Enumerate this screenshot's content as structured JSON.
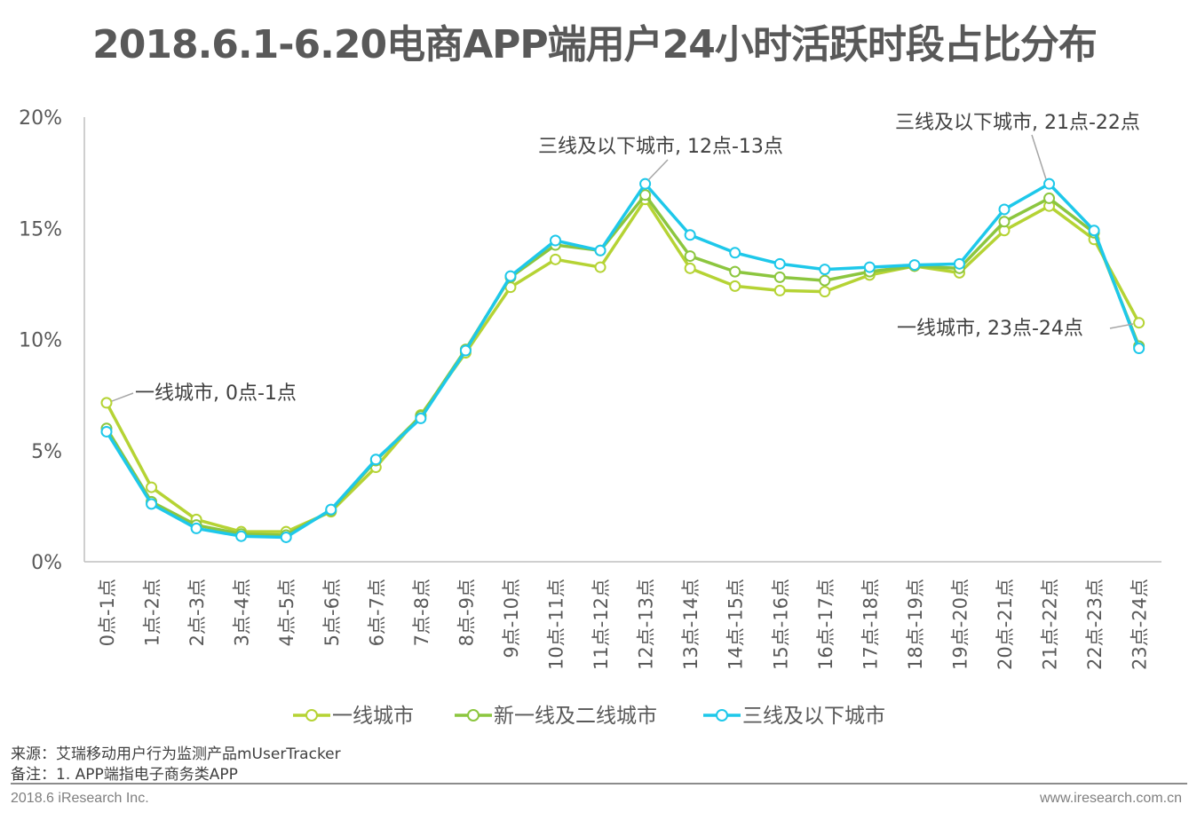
{
  "chart_data": {
    "type": "line",
    "title": "2018.6.1-6.20电商APP端用户24小时活跃时段占比分布",
    "xlabel": "",
    "ylabel": "",
    "ylim": [
      0,
      20
    ],
    "yticks": [
      "0%",
      "5%",
      "10%",
      "15%",
      "20%"
    ],
    "ytick_values": [
      0,
      5,
      10,
      15,
      20
    ],
    "grid": false,
    "legend_position": "bottom",
    "categories": [
      "0点-1点",
      "1点-2点",
      "2点-3点",
      "3点-4点",
      "4点-5点",
      "5点-6点",
      "6点-7点",
      "7点-8点",
      "8点-9点",
      "9点-10点",
      "10点-11点",
      "11点-12点",
      "12点-13点",
      "13点-14点",
      "14点-15点",
      "15点-16点",
      "16点-17点",
      "17点-18点",
      "18点-19点",
      "19点-20点",
      "20点-21点",
      "21点-22点",
      "22点-23点",
      "23点-24点"
    ],
    "series": [
      {
        "name": "一线城市",
        "color": "#b5d334",
        "values": [
          7.15,
          3.35,
          1.9,
          1.35,
          1.35,
          2.25,
          4.25,
          6.6,
          9.4,
          12.35,
          13.6,
          13.25,
          16.3,
          13.2,
          12.4,
          12.2,
          12.15,
          12.9,
          13.3,
          13.0,
          14.9,
          16.0,
          14.5,
          10.75
        ]
      },
      {
        "name": "新一线及二线城市",
        "color": "#8cc63f",
        "values": [
          6.0,
          2.7,
          1.65,
          1.25,
          1.2,
          2.3,
          4.55,
          6.55,
          9.55,
          12.8,
          14.25,
          14.0,
          16.5,
          13.75,
          13.05,
          12.8,
          12.65,
          13.05,
          13.3,
          13.2,
          15.3,
          16.35,
          14.8,
          9.7
        ]
      },
      {
        "name": "三线及以下城市",
        "color": "#1ec8ea",
        "values": [
          5.85,
          2.6,
          1.5,
          1.15,
          1.1,
          2.35,
          4.6,
          6.45,
          9.5,
          12.85,
          14.45,
          14.0,
          17.0,
          14.7,
          13.9,
          13.4,
          13.15,
          13.25,
          13.35,
          13.4,
          15.85,
          17.0,
          14.9,
          9.6
        ]
      }
    ],
    "annotations": [
      {
        "text": "一线城市, 0点-1点",
        "series": 0,
        "index": 0
      },
      {
        "text": "三线及以下城市, 12点-13点",
        "series": 2,
        "index": 12
      },
      {
        "text": "三线及以下城市, 21点-22点",
        "series": 2,
        "index": 21
      },
      {
        "text": "一线城市, 23点-24点",
        "series": 0,
        "index": 23
      }
    ]
  },
  "notes": {
    "source": "来源：艾瑞移动用户行为监测产品mUserTracker",
    "remark": "备注：1. APP端指电子商务类APP"
  },
  "footer": {
    "left": "2018.6 iResearch Inc.",
    "right": "www.iresearch.com.cn"
  }
}
